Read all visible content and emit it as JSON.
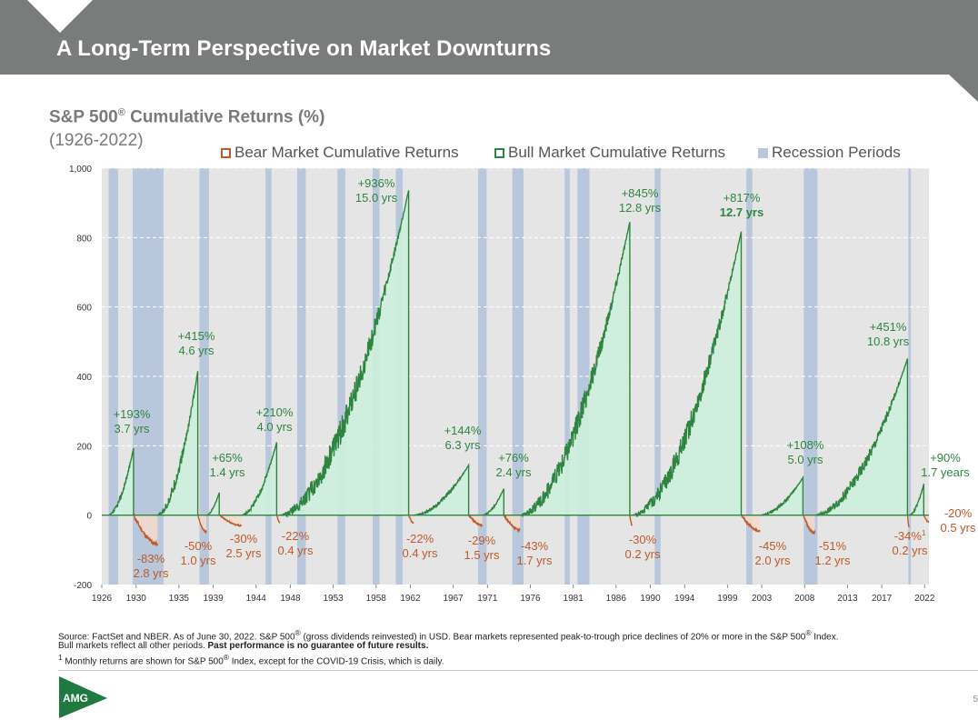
{
  "header": {
    "title": "A Long-Term Perspective on Market Downturns"
  },
  "chart_title": {
    "main": "S&P 500",
    "reg": "®",
    "rest": " Cumulative Returns (%)",
    "subtitle": "(1926-2022)"
  },
  "legend": {
    "bear": "Bear Market Cumulative Returns",
    "bull": "Bull Market Cumulative Returns",
    "recession": "Recession Periods"
  },
  "colors": {
    "bear": "#c0592a",
    "bull": "#2e8540",
    "bull_fill": "#cdeedb",
    "recession": "#b8c7dc",
    "plot_bg": "#e5e5e5"
  },
  "chart_data": {
    "type": "area",
    "xlim": [
      1926,
      2022.5
    ],
    "ylim": [
      -200,
      1000
    ],
    "yticks": [
      -200,
      0,
      200,
      400,
      600,
      800,
      1000
    ],
    "ytick_labels": [
      "-200",
      "0",
      "200",
      "400",
      "600",
      "800",
      "1,000"
    ],
    "xticks": [
      1926,
      1930,
      1935,
      1939,
      1944,
      1948,
      1953,
      1958,
      1962,
      1967,
      1971,
      1976,
      1981,
      1986,
      1990,
      1994,
      1999,
      2003,
      2008,
      2013,
      2017,
      2022
    ],
    "grid": true,
    "recessions": [
      [
        1926.8,
        1927.9
      ],
      [
        1929.6,
        1933.2
      ],
      [
        1937.4,
        1938.5
      ],
      [
        1945.1,
        1945.8
      ],
      [
        1948.8,
        1949.8
      ],
      [
        1953.5,
        1954.4
      ],
      [
        1957.6,
        1958.4
      ],
      [
        1960.3,
        1961.1
      ],
      [
        1969.9,
        1970.9
      ],
      [
        1973.9,
        1975.2
      ],
      [
        1980.0,
        1980.6
      ],
      [
        1981.5,
        1982.9
      ],
      [
        1990.5,
        1991.2
      ],
      [
        2001.2,
        2001.9
      ],
      [
        2007.9,
        2009.5
      ],
      [
        2020.1,
        2020.4
      ]
    ],
    "bull_markets": [
      {
        "start": 1926.8,
        "end": 1929.7,
        "gain": 193,
        "label": "+193%",
        "duration": "3.7 yrs"
      },
      {
        "start": 1932.5,
        "end": 1937.2,
        "gain": 415,
        "label": "+415%",
        "duration": "4.6 yrs"
      },
      {
        "start": 1938.2,
        "end": 1939.7,
        "gain": 65,
        "label": "+65%",
        "duration": "1.4 yrs"
      },
      {
        "start": 1942.3,
        "end": 1946.4,
        "gain": 210,
        "label": "+210%",
        "duration": "4.0 yrs"
      },
      {
        "start": 1946.8,
        "end": 1961.8,
        "gain": 936,
        "label": "+936%",
        "duration": "15.0 yrs"
      },
      {
        "start": 1962.4,
        "end": 1968.8,
        "gain": 144,
        "label": "+144%",
        "duration": "6.3 yrs"
      },
      {
        "start": 1970.4,
        "end": 1972.9,
        "gain": 76,
        "label": "+76%",
        "duration": "2.4 yrs"
      },
      {
        "start": 1974.8,
        "end": 1987.6,
        "gain": 845,
        "label": "+845%",
        "duration": "12.8 yrs"
      },
      {
        "start": 1987.9,
        "end": 2000.6,
        "gain": 817,
        "label": "+817%",
        "duration": "12.7 yrs"
      },
      {
        "start": 2002.8,
        "end": 2007.8,
        "gain": 108,
        "label": "+108%",
        "duration": "5.0 yrs"
      },
      {
        "start": 2009.2,
        "end": 2020.0,
        "gain": 451,
        "label": "+451%",
        "duration": "10.8 yrs"
      },
      {
        "start": 2020.2,
        "end": 2021.9,
        "gain": 90,
        "label": "+90%",
        "duration": "1.7 years"
      }
    ],
    "bear_markets": [
      {
        "start": 1929.7,
        "end": 1932.5,
        "drop": -83,
        "label": "-83%",
        "duration": "2.8 yrs"
      },
      {
        "start": 1937.2,
        "end": 1938.2,
        "drop": -50,
        "label": "-50%",
        "duration": "1.0 yrs"
      },
      {
        "start": 1939.7,
        "end": 1942.3,
        "drop": -30,
        "label": "-30%",
        "duration": "2.5 yrs"
      },
      {
        "start": 1946.4,
        "end": 1946.8,
        "drop": -22,
        "label": "-22%",
        "duration": "0.4 yrs"
      },
      {
        "start": 1961.8,
        "end": 1962.4,
        "drop": -22,
        "label": "-22%",
        "duration": "0.4 yrs"
      },
      {
        "start": 1968.8,
        "end": 1970.4,
        "drop": -29,
        "label": "-29%",
        "duration": "1.5 yrs"
      },
      {
        "start": 1972.9,
        "end": 1974.8,
        "drop": -43,
        "label": "-43%",
        "duration": "1.7 yrs"
      },
      {
        "start": 1987.6,
        "end": 1987.9,
        "drop": -30,
        "label": "-30%",
        "duration": "0.2 yrs"
      },
      {
        "start": 2000.6,
        "end": 2002.8,
        "drop": -45,
        "label": "-45%",
        "duration": "2.0 yrs"
      },
      {
        "start": 2007.8,
        "end": 2009.2,
        "drop": -51,
        "label": "-51%",
        "duration": "1.2 yrs"
      },
      {
        "start": 2020.0,
        "end": 2020.2,
        "drop": -34,
        "label": "-34%",
        "label_sup": "1",
        "duration": "0.2 yrs"
      },
      {
        "start": 2021.9,
        "end": 2022.5,
        "drop": -20,
        "label": "-20%",
        "duration": "0.5 yrs"
      }
    ]
  },
  "footnotes": {
    "line1_a": "Source: FactSet and NBER. As of June 30, 2022. S&P 500",
    "line1_b": " (gross dividends reinvested) in USD. Bear markets represented peak-to-trough price declines of 20% or more in the S&P 500",
    "line1_c": " Index.",
    "reg": "®",
    "line2_a": "Bull markets reflect all other periods. ",
    "line2_bold": "Past performance is no guarantee of future results.",
    "line3_sup": "1",
    "line3_a": " Monthly returns are shown for S&P 500",
    "line3_b": " Index, except for the COVID-19 Crisis, which is daily."
  },
  "logo": {
    "text": "AMG"
  },
  "page_number": "5"
}
